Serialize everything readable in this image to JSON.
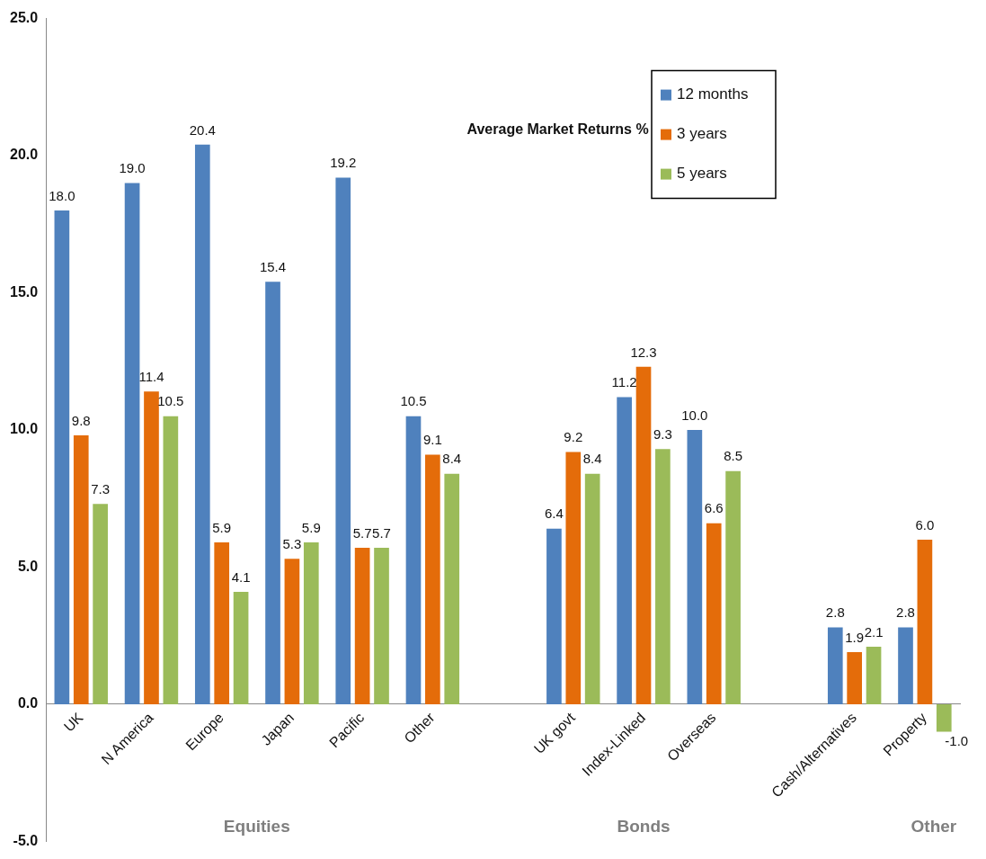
{
  "chart_data": {
    "type": "bar",
    "title": "Average Market Returns %",
    "categories": [
      "UK",
      "N America",
      "Europe",
      "Japan",
      "Pacific",
      "Other",
      null,
      "UK govt",
      "Index-Linked",
      "Overseas",
      null,
      "Cash/Alternatives",
      "Property"
    ],
    "series": [
      {
        "name": "12 months",
        "color": "#4f81bd",
        "values": [
          18.0,
          19.0,
          20.4,
          15.4,
          19.2,
          10.5,
          null,
          6.4,
          11.2,
          10.0,
          null,
          2.8,
          2.8
        ],
        "value_labels": [
          "18.0",
          "19.0",
          "20.4",
          "15.4",
          "19.2",
          "10.5",
          null,
          "6.4",
          "11.2",
          "10.0",
          null,
          "2.8",
          "2.8"
        ]
      },
      {
        "name": "3 years",
        "color": "#e46c0a",
        "values": [
          9.8,
          11.4,
          5.9,
          5.3,
          5.7,
          9.1,
          null,
          9.2,
          12.3,
          6.6,
          null,
          1.9,
          6.0
        ],
        "value_labels": [
          "9.8",
          "11.4",
          "5.9",
          "5.3",
          "5.7",
          "9.1",
          null,
          "9.2",
          "12.3",
          "6.6",
          null,
          "1.9",
          "6.0"
        ]
      },
      {
        "name": "5 years",
        "color": "#9bbb59",
        "values": [
          7.3,
          10.5,
          4.1,
          5.9,
          5.7,
          8.4,
          null,
          8.4,
          9.3,
          8.5,
          null,
          2.1,
          -1.0
        ],
        "value_labels": [
          "7.3",
          "10.5",
          "4.1",
          "5.9",
          "5.7",
          "8.4",
          null,
          "8.4",
          "9.3",
          "8.5",
          null,
          "2.1",
          "-1.0"
        ]
      }
    ],
    "ylim": [
      -5,
      25
    ],
    "yticks": [
      {
        "value": -5,
        "label": "-5.0"
      },
      {
        "value": 0,
        "label": "0.0"
      },
      {
        "value": 5,
        "label": "5.0"
      },
      {
        "value": 10,
        "label": "10.0"
      },
      {
        "value": 15,
        "label": "15.0"
      },
      {
        "value": 20,
        "label": "20.0"
      },
      {
        "value": 25,
        "label": "25.0"
      }
    ],
    "grid": false,
    "legend": "top right",
    "annotations": [
      "Equities",
      "Bonds",
      "Other"
    ]
  }
}
